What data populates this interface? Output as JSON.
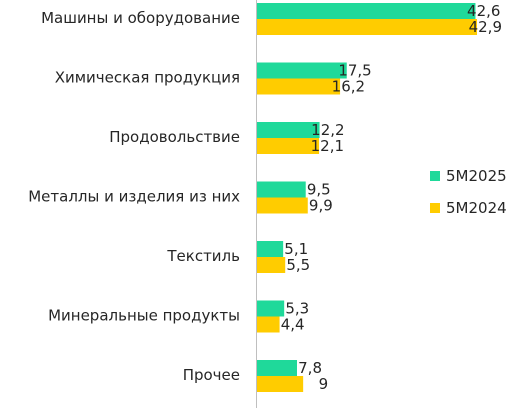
{
  "chart_data": {
    "type": "bar",
    "orientation": "horizontal",
    "categories": [
      "Машины и оборудование",
      "Химическая продукция",
      "Продовольствие",
      "Металлы и изделия из них",
      "Текстиль",
      "Минеральные продукты ",
      "Прочее"
    ],
    "series": [
      {
        "name": "5М2025",
        "color": "#1fd99a",
        "values": [
          42.6,
          17.5,
          12.2,
          9.5,
          5.1,
          5.3,
          7.8
        ],
        "labels": [
          "42,6",
          "17,5",
          "12,2",
          "9,5",
          "5,1",
          "5,3",
          "7,8"
        ]
      },
      {
        "name": "5М2024",
        "color": "#ffcc00",
        "values": [
          42.9,
          16.2,
          12.1,
          9.9,
          5.5,
          4.4,
          9
        ],
        "labels": [
          "42,9",
          "16,2",
          "12,1",
          "9,9",
          "5,5",
          "4,4",
          "9"
        ]
      }
    ],
    "xlim": [
      0,
      42.9
    ],
    "grid": false,
    "legend_position": "right"
  }
}
